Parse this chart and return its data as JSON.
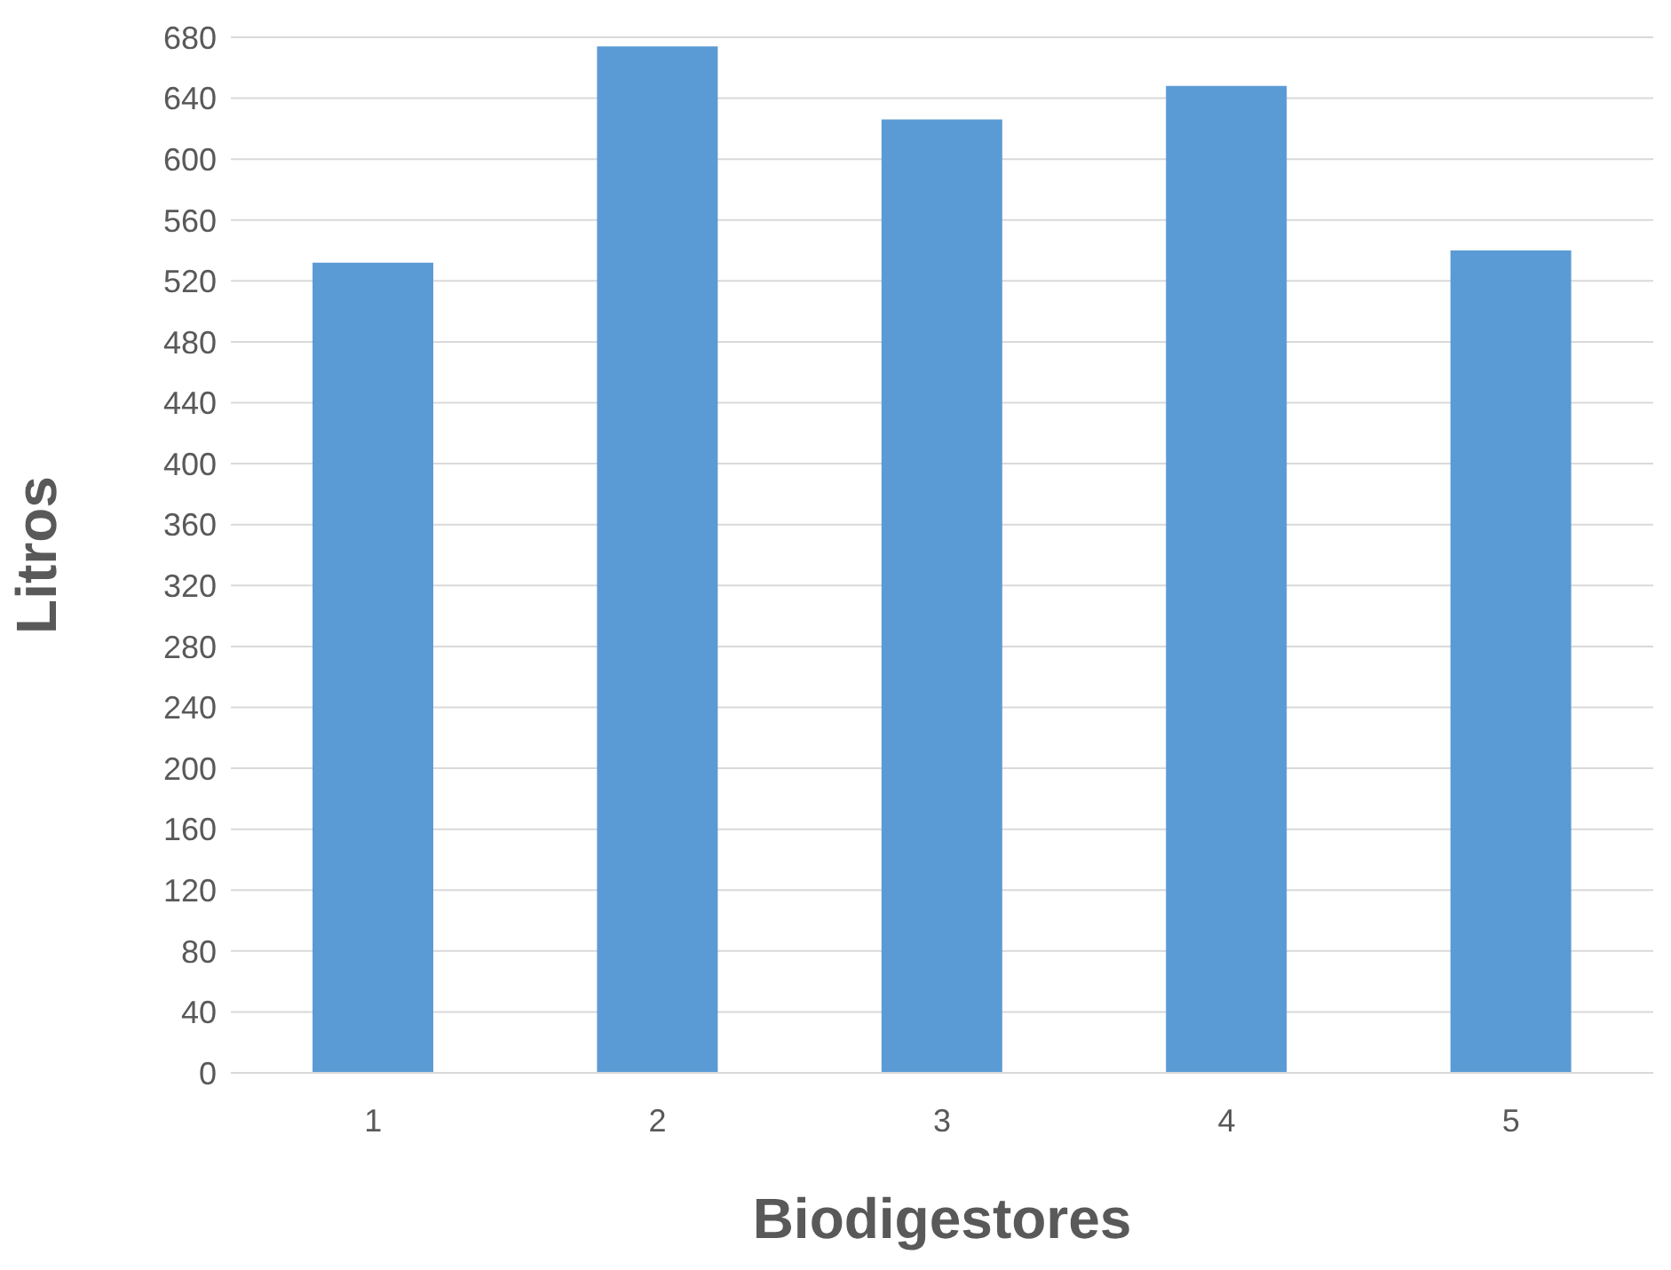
{
  "chart_data": {
    "type": "bar",
    "xlabel": "Biodigestores",
    "ylabel": "Litros",
    "categories": [
      "1",
      "2",
      "3",
      "4",
      "5"
    ],
    "values": [
      532,
      674,
      626,
      648,
      540
    ],
    "color": "#5b9bd5",
    "ylim": [
      0,
      680
    ],
    "yticks": [
      0,
      40,
      80,
      120,
      160,
      200,
      240,
      280,
      320,
      360,
      400,
      440,
      480,
      520,
      560,
      600,
      640,
      680
    ],
    "grid": "y",
    "legend": false
  }
}
